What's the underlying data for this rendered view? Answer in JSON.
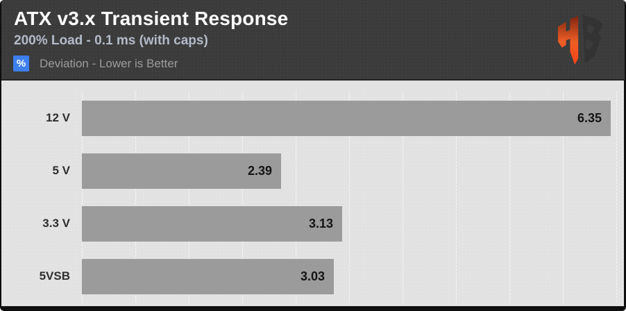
{
  "header": {
    "title": "ATX v3.x Transient Response",
    "subtitle": "200% Load - 0.1 ms (with caps)",
    "legend": {
      "badge": "%",
      "label": "Deviation - Lower is Better"
    },
    "logo": "hardware-busters-hb-logo"
  },
  "colors": {
    "header_bg": "#3b3b3b",
    "chart_bg": "#e3e3e3",
    "bar": "#9b9b9b",
    "badge_blue": "#3d7ff1",
    "title_text": "#ffffff",
    "subtitle_text": "#b3bbc9",
    "legend_text": "#9c9c9c",
    "category_text": "#2e2e2e",
    "value_text": "#141414",
    "logo_orange_top": "#7d2410",
    "logo_orange_mid": "#ef5e25",
    "logo_orange_bottom": "#ff3c12",
    "logo_dark": "#333333"
  },
  "chart_data": {
    "type": "bar",
    "orientation": "horizontal",
    "title": "ATX v3.x Transient Response",
    "subtitle": "200% Load - 0.1 ms (with caps)",
    "note": "Deviation - Lower is Better",
    "unit": "%",
    "categories": [
      "12 V",
      "5 V",
      "3.3 V",
      "5VSB"
    ],
    "values": [
      6.35,
      2.39,
      3.13,
      3.03
    ],
    "value_labels": [
      "6.35",
      "2.39",
      "3.13",
      "3.03"
    ],
    "xlabel": "",
    "ylabel": "",
    "xlim": [
      0,
      6.42
    ],
    "gridline_count": 10,
    "grid": "vertical-dashed",
    "legend_position": "top-left-badge"
  }
}
